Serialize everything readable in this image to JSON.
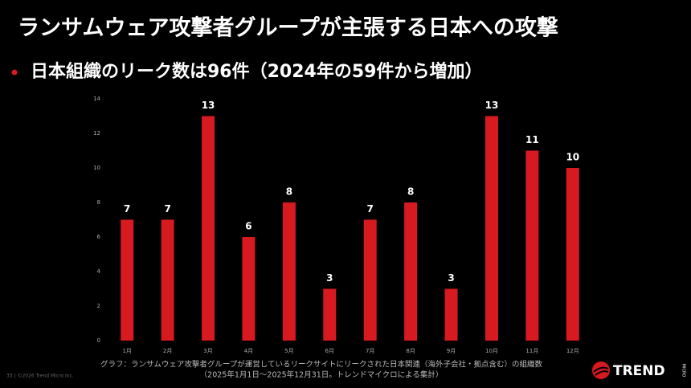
{
  "slide": {
    "title": "ランサムウェア攻撃者グループが主張する日本への攻撃",
    "bullet": "日本組織のリーク数は96件（2024年の59件から増加）",
    "footnote": [
      "グラフ：ランサムウェア攻撃者グループが運営しているリークサイトにリークされた日本関連（海外子会社・拠点含む）の組織数",
      "（2025年1月1日～2025年12月31日。トレンドマイクロによる集計）"
    ],
    "page": "33 | ©2026 Trend Micro Inc.",
    "logo": "TREND",
    "logo_sub": "MICRO"
  },
  "chart_data": {
    "type": "bar",
    "categories": [
      "1月",
      "2月",
      "3月",
      "4月",
      "5月",
      "6月",
      "7月",
      "8月",
      "9月",
      "10月",
      "11月",
      "12月"
    ],
    "values": [
      7,
      7,
      13,
      6,
      8,
      3,
      7,
      8,
      3,
      13,
      11,
      10
    ],
    "color": "#d71920",
    "ylim": [
      0,
      14
    ],
    "yticks": [
      0,
      2,
      4,
      6,
      8,
      10,
      12,
      14
    ],
    "grid": false
  }
}
